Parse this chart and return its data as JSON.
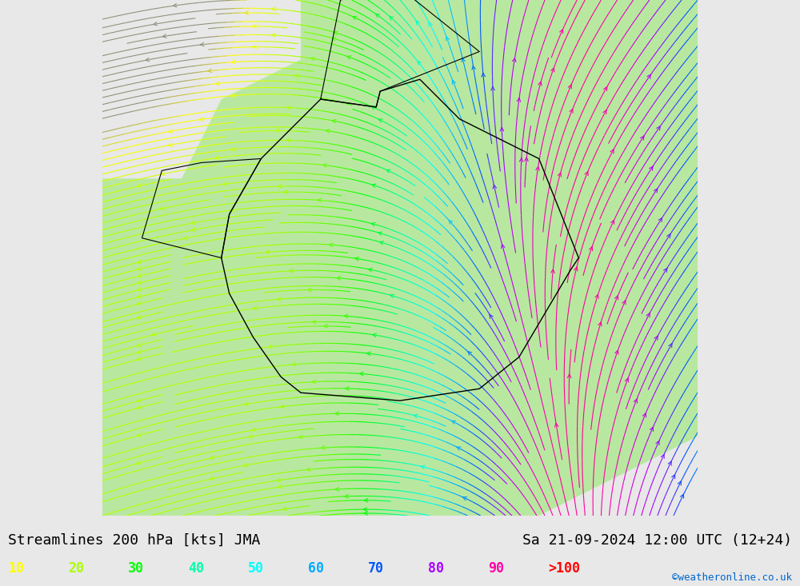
{
  "title_left": "Streamlines 200 hPa [kts] JMA",
  "title_right": "Sa 21-09-2024 12:00 UTC (12+24)",
  "credit": "©weatheronline.co.uk",
  "legend_values": [
    "10",
    "20",
    "30",
    "40",
    "50",
    "60",
    "70",
    "80",
    "90",
    ">100"
  ],
  "legend_colors": [
    "#ffff00",
    "#aaff00",
    "#00ff00",
    "#00ffaa",
    "#00ffff",
    "#00aaff",
    "#0055ff",
    "#aa00ff",
    "#ff00aa",
    "#ff0000"
  ],
  "bg_color": "#e8e8e8",
  "land_color_low": "#aaffaa",
  "land_color_mid": "#ccffcc",
  "fig_width": 10.0,
  "fig_height": 7.33,
  "streamline_density": 2.5,
  "colormap_name": "streamlines"
}
